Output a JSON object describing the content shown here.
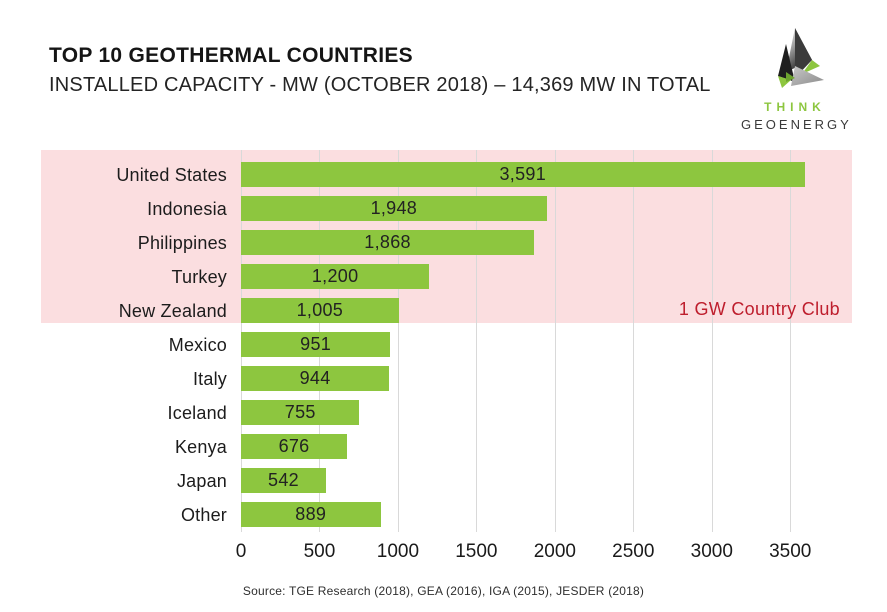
{
  "header": {
    "title": "TOP 10 GEOTHERMAL COUNTRIES",
    "subtitle": "INSTALLED CAPACITY - MW (OCTOBER 2018) – 14,369 MW IN TOTAL"
  },
  "logo": {
    "top_text": "THINK",
    "bottom_text": "GEOENERGY",
    "green": "#8DC63F",
    "dark": "#3a3a3a"
  },
  "chart_data": {
    "type": "bar",
    "orientation": "horizontal",
    "title": "TOP 10 GEOTHERMAL COUNTRIES",
    "subtitle": "INSTALLED CAPACITY - MW (OCTOBER 2018) – 14,369 MW IN TOTAL",
    "categories": [
      "United States",
      "Indonesia",
      "Philippines",
      "Turkey",
      "New Zealand",
      "Mexico",
      "Italy",
      "Iceland",
      "Kenya",
      "Japan",
      "Other"
    ],
    "values": [
      3591,
      1948,
      1868,
      1200,
      1005,
      951,
      944,
      755,
      676,
      542,
      889
    ],
    "value_labels": [
      "3,591",
      "1,948",
      "1,868",
      "1,200",
      "1,005",
      "951",
      "944",
      "755",
      "676",
      "542",
      "889"
    ],
    "xlabel": "",
    "ylabel": "",
    "x_ticks": [
      0,
      500,
      1000,
      1500,
      2000,
      2500,
      3000,
      3500
    ],
    "xlim": [
      0,
      3900
    ],
    "grid": "vertical",
    "bar_color": "#8DC63F",
    "gridline_color": "#D9D9D9",
    "highlight_band": {
      "label": "1 GW Country Club",
      "label_color": "#BE1E2D",
      "band_color": "#FBDEE0",
      "covers_categories": [
        "United States",
        "Indonesia",
        "Philippines",
        "Turkey",
        "New Zealand"
      ]
    }
  },
  "annotation": {
    "club_label": "1 GW Country Club"
  },
  "footer": {
    "source": "Source: TGE Research (2018), GEA (2016), IGA (2015), JESDER (2018)"
  }
}
